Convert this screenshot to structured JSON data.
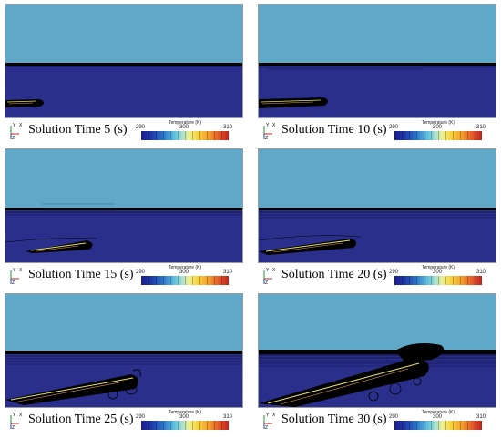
{
  "panels": [
    {
      "caption": "Solution Time 5 (s)"
    },
    {
      "caption": "Solution Time 10 (s)"
    },
    {
      "caption": "Solution Time 15 (s)"
    },
    {
      "caption": "Solution Time 20 (s)"
    },
    {
      "caption": "Solution Time 25 (s)"
    },
    {
      "caption": "Solution Time 30 (s)"
    }
  ],
  "colorbar": {
    "title": "Temperature (K)",
    "min_label": "290",
    "mid_label": "300",
    "max_label": "310"
  },
  "axis_labels": {
    "y": "Y",
    "x": "X",
    "z": "Z"
  },
  "colors": {
    "air": "#5fa8c8",
    "water": "#2a2f8c",
    "contour": "#000000"
  }
}
